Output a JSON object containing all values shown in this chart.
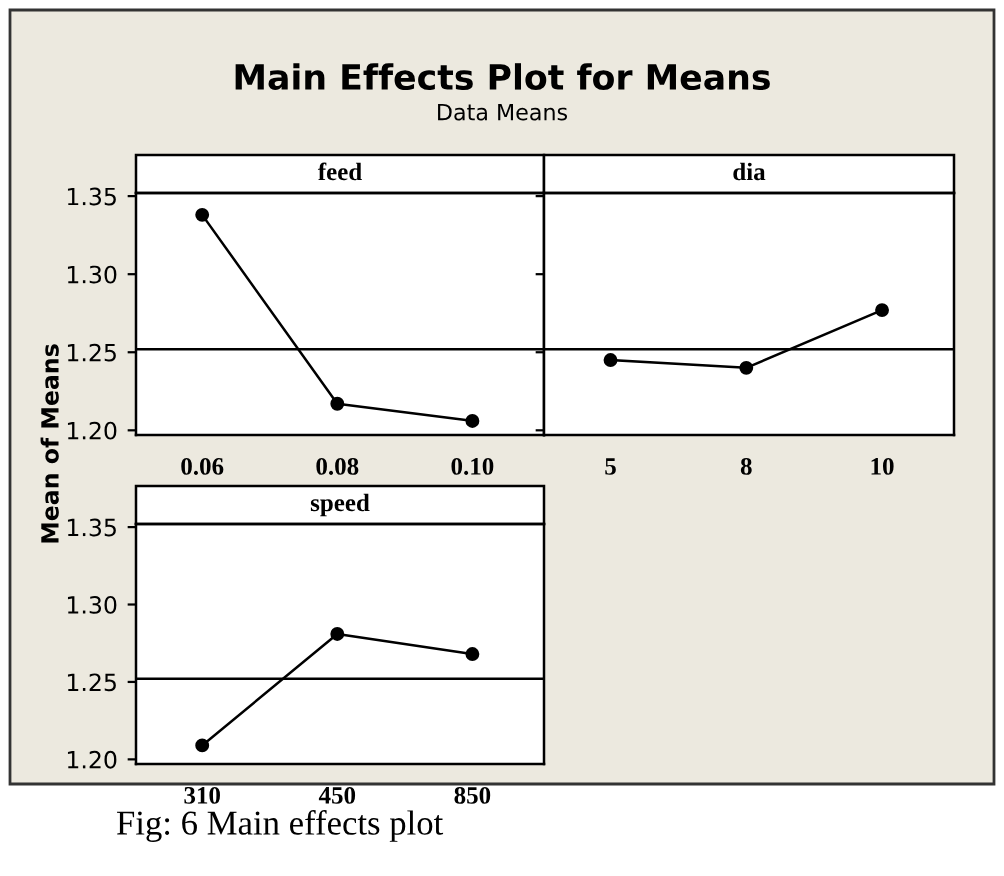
{
  "chart_data": [
    {
      "type": "other",
      "title": "Main Effects Plot for Means",
      "subtitle": "Data Means",
      "annotations": [
        "Fig: 6 Main effects plot"
      ]
    },
    {
      "type": "line",
      "title": "feed",
      "categories": [
        "0.06",
        "0.08",
        "0.10"
      ],
      "values": [
        1.338,
        1.217,
        1.206
      ],
      "color": "#000000",
      "marker": "circle",
      "ylim": [
        1.197,
        1.352
      ],
      "yticks": [
        {
          "value": 1.2,
          "label": "1.20"
        },
        {
          "value": 1.25,
          "label": "1.25"
        },
        {
          "value": 1.3,
          "label": "1.30"
        },
        {
          "value": 1.35,
          "label": "1.35"
        }
      ],
      "ref_lines": [
        {
          "axis": "y",
          "value": 1.252,
          "color": "#000000"
        }
      ],
      "grid": false,
      "legend": false
    },
    {
      "type": "line",
      "title": "dia",
      "categories": [
        "5",
        "8",
        "10"
      ],
      "values": [
        1.245,
        1.24,
        1.277
      ],
      "color": "#000000",
      "marker": "circle",
      "ylim": [
        1.197,
        1.352
      ],
      "yticks": [
        {
          "value": 1.2,
          "label": null
        },
        {
          "value": 1.25,
          "label": null
        },
        {
          "value": 1.3,
          "label": null
        },
        {
          "value": 1.35,
          "label": null
        }
      ],
      "tick_labels": "x",
      "ref_lines": [
        {
          "axis": "y",
          "value": 1.252,
          "color": "#000000"
        }
      ],
      "grid": false,
      "legend": false
    },
    {
      "type": "line",
      "title": "speed",
      "ylabel": "Mean of Means",
      "categories": [
        "310",
        "450",
        "850"
      ],
      "values": [
        1.209,
        1.281,
        1.268
      ],
      "color": "#000000",
      "marker": "circle",
      "ylim": [
        1.197,
        1.352
      ],
      "yticks": [
        {
          "value": 1.2,
          "label": "1.20"
        },
        {
          "value": 1.25,
          "label": "1.25"
        },
        {
          "value": 1.3,
          "label": "1.30"
        },
        {
          "value": 1.35,
          "label": "1.35"
        }
      ],
      "ref_lines": [
        {
          "axis": "y",
          "value": 1.252,
          "color": "#000000"
        }
      ],
      "grid": false,
      "legend": false
    }
  ]
}
